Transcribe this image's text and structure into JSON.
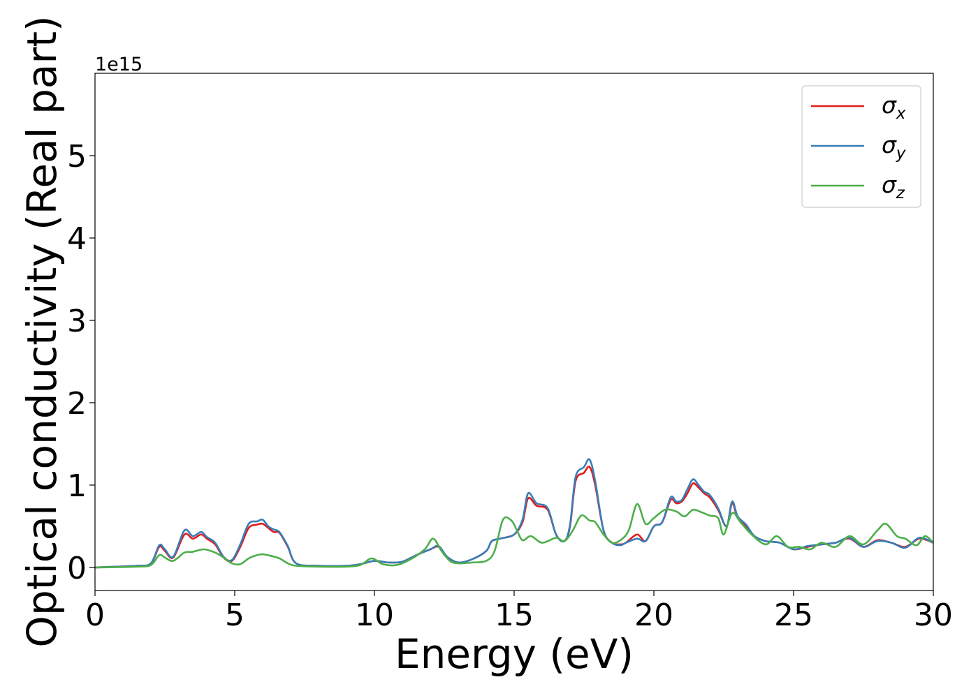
{
  "chart_data": {
    "type": "line",
    "title": "",
    "xlabel": "Energy (eV)",
    "ylabel": "Optical conductivity (Real part)",
    "y_scale_label": "1e15",
    "y_multiplier": 1000000000000000.0,
    "xlim": [
      0,
      30
    ],
    "ylim": [
      -0.28,
      6.0
    ],
    "x_ticks": [
      0,
      5,
      10,
      15,
      20,
      25,
      30
    ],
    "x_tick_labels": [
      "0",
      "5",
      "10",
      "15",
      "20",
      "25",
      "30"
    ],
    "y_ticks": [
      0,
      1,
      2,
      3,
      4,
      5
    ],
    "y_tick_labels": [
      "0",
      "1",
      "2",
      "3",
      "4",
      "5"
    ],
    "grid": false,
    "legend_position": "top-right",
    "series": [
      {
        "name": "σx",
        "legend_main": "σ",
        "legend_sub": "x",
        "color": "#e41a1c",
        "x": [
          0,
          1.5,
          2.0,
          2.3,
          2.5,
          2.8,
          3.2,
          3.5,
          3.8,
          4.0,
          4.3,
          4.6,
          4.9,
          5.2,
          5.5,
          5.8,
          6.0,
          6.2,
          6.4,
          6.6,
          6.9,
          7.2,
          8,
          9,
          9.5,
          10.0,
          10.5,
          11.0,
          11.5,
          12.0,
          12.3,
          12.6,
          13.0,
          13.5,
          14.0,
          14.2,
          14.5,
          15.0,
          15.3,
          15.5,
          15.8,
          16.2,
          16.5,
          16.8,
          17.0,
          17.2,
          17.5,
          17.7,
          17.9,
          18.2,
          18.5,
          18.8,
          19.0,
          19.4,
          19.7,
          20.0,
          20.3,
          20.6,
          20.8,
          21.0,
          21.2,
          21.4,
          21.6,
          21.8,
          22.0,
          22.3,
          22.6,
          22.8,
          23.0,
          23.3,
          23.6,
          24.0,
          24.5,
          25.0,
          25.5,
          26.0,
          26.5,
          27.0,
          27.5,
          28.0,
          28.5,
          29.0,
          29.5,
          30.0
        ],
        "values": [
          0.0,
          0.02,
          0.05,
          0.25,
          0.2,
          0.12,
          0.4,
          0.35,
          0.4,
          0.35,
          0.28,
          0.12,
          0.08,
          0.25,
          0.48,
          0.52,
          0.53,
          0.48,
          0.43,
          0.42,
          0.25,
          0.05,
          0.02,
          0.02,
          0.04,
          0.08,
          0.06,
          0.07,
          0.15,
          0.22,
          0.25,
          0.13,
          0.06,
          0.1,
          0.2,
          0.32,
          0.35,
          0.4,
          0.55,
          0.84,
          0.75,
          0.7,
          0.4,
          0.32,
          0.5,
          1.05,
          1.15,
          1.22,
          1.0,
          0.45,
          0.3,
          0.28,
          0.3,
          0.4,
          0.32,
          0.5,
          0.55,
          0.82,
          0.78,
          0.8,
          0.9,
          1.02,
          0.97,
          0.9,
          0.85,
          0.7,
          0.5,
          0.78,
          0.6,
          0.5,
          0.38,
          0.32,
          0.3,
          0.22,
          0.25,
          0.28,
          0.3,
          0.35,
          0.25,
          0.33,
          0.3,
          0.25,
          0.35,
          0.3
        ]
      },
      {
        "name": "σy",
        "legend_main": "σ",
        "legend_sub": "y",
        "color": "#377eb8",
        "x": [
          0,
          1.5,
          2.0,
          2.3,
          2.5,
          2.8,
          3.2,
          3.5,
          3.8,
          4.0,
          4.3,
          4.6,
          4.9,
          5.2,
          5.5,
          5.8,
          6.0,
          6.2,
          6.4,
          6.6,
          6.9,
          7.2,
          8,
          9,
          9.5,
          10.0,
          10.5,
          11.0,
          11.5,
          12.0,
          12.3,
          12.6,
          13.0,
          13.5,
          14.0,
          14.2,
          14.5,
          15.0,
          15.3,
          15.5,
          15.8,
          16.2,
          16.5,
          16.8,
          17.0,
          17.2,
          17.5,
          17.7,
          17.9,
          18.2,
          18.5,
          18.8,
          19.0,
          19.4,
          19.7,
          20.0,
          20.3,
          20.6,
          20.8,
          21.0,
          21.2,
          21.4,
          21.6,
          21.8,
          22.0,
          22.3,
          22.6,
          22.8,
          23.0,
          23.3,
          23.6,
          24.0,
          24.5,
          25.0,
          25.5,
          26.0,
          26.5,
          27.0,
          27.5,
          28.0,
          28.5,
          29.0,
          29.5,
          30.0
        ],
        "values": [
          0.0,
          0.02,
          0.05,
          0.27,
          0.22,
          0.13,
          0.45,
          0.38,
          0.43,
          0.37,
          0.3,
          0.13,
          0.09,
          0.28,
          0.53,
          0.56,
          0.58,
          0.5,
          0.46,
          0.43,
          0.26,
          0.05,
          0.02,
          0.02,
          0.04,
          0.08,
          0.06,
          0.07,
          0.15,
          0.22,
          0.26,
          0.13,
          0.06,
          0.1,
          0.2,
          0.32,
          0.35,
          0.4,
          0.58,
          0.9,
          0.78,
          0.72,
          0.4,
          0.32,
          0.52,
          1.1,
          1.22,
          1.31,
          1.05,
          0.45,
          0.3,
          0.27,
          0.3,
          0.35,
          0.32,
          0.5,
          0.55,
          0.85,
          0.8,
          0.82,
          0.95,
          1.07,
          1.0,
          0.92,
          0.88,
          0.72,
          0.5,
          0.8,
          0.62,
          0.52,
          0.38,
          0.32,
          0.3,
          0.22,
          0.26,
          0.28,
          0.3,
          0.36,
          0.25,
          0.32,
          0.3,
          0.24,
          0.36,
          0.3
        ]
      },
      {
        "name": "σz",
        "legend_main": "σ",
        "legend_sub": "z",
        "color": "#4daf4a",
        "x": [
          0,
          1.5,
          2.0,
          2.3,
          2.5,
          2.8,
          3.2,
          3.5,
          3.9,
          4.3,
          4.6,
          4.9,
          5.2,
          5.5,
          5.8,
          6.0,
          6.3,
          6.6,
          6.9,
          7.2,
          8,
          9,
          9.5,
          9.9,
          10.3,
          10.8,
          11.3,
          11.8,
          12.1,
          12.4,
          12.7,
          13.0,
          13.5,
          14.0,
          14.3,
          14.6,
          14.9,
          15.1,
          15.3,
          15.6,
          16.0,
          16.5,
          16.8,
          17.1,
          17.4,
          17.7,
          17.9,
          18.2,
          18.5,
          18.8,
          19.1,
          19.4,
          19.7,
          20.0,
          20.4,
          20.8,
          21.1,
          21.4,
          21.7,
          22.0,
          22.3,
          22.5,
          22.8,
          23.1,
          23.5,
          24.0,
          24.4,
          24.8,
          25.2,
          25.6,
          26.0,
          26.5,
          27.0,
          27.5,
          28.0,
          28.3,
          28.7,
          29.0,
          29.4,
          29.7,
          30.0
        ],
        "values": [
          0.0,
          0.01,
          0.03,
          0.15,
          0.12,
          0.08,
          0.18,
          0.19,
          0.22,
          0.18,
          0.12,
          0.05,
          0.04,
          0.11,
          0.15,
          0.16,
          0.14,
          0.11,
          0.05,
          0.02,
          0.01,
          0.01,
          0.03,
          0.11,
          0.04,
          0.03,
          0.1,
          0.22,
          0.35,
          0.2,
          0.08,
          0.05,
          0.06,
          0.08,
          0.2,
          0.58,
          0.57,
          0.45,
          0.33,
          0.38,
          0.3,
          0.36,
          0.32,
          0.45,
          0.63,
          0.57,
          0.55,
          0.4,
          0.3,
          0.33,
          0.45,
          0.77,
          0.53,
          0.6,
          0.7,
          0.68,
          0.62,
          0.7,
          0.67,
          0.63,
          0.6,
          0.4,
          0.66,
          0.55,
          0.4,
          0.28,
          0.38,
          0.25,
          0.25,
          0.22,
          0.3,
          0.25,
          0.38,
          0.28,
          0.45,
          0.53,
          0.38,
          0.35,
          0.27,
          0.38,
          0.3
        ]
      }
    ]
  }
}
